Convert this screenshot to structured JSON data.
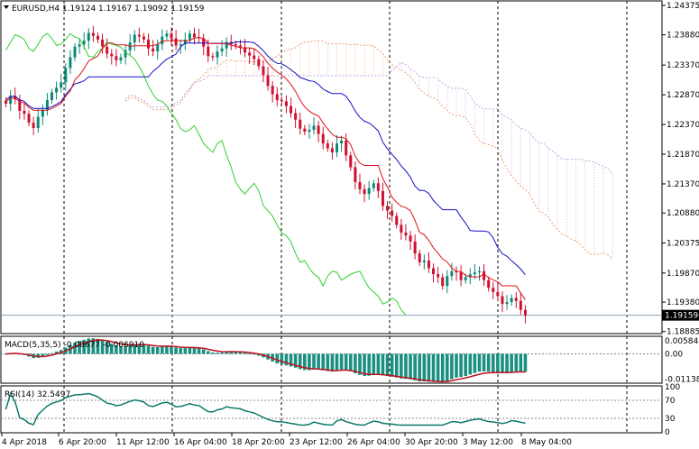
{
  "main": {
    "symbol_header": "EURUSD,H4  1.19124 1.19167 1.19092 1.19159",
    "last_price_label": "1.19159",
    "price_ticks": [
      "1.24375",
      "1.23880",
      "1.23370",
      "1.22870",
      "1.22370",
      "1.21870",
      "1.21370",
      "1.20880",
      "1.20375",
      "1.19870",
      "1.19380",
      "1.18885"
    ],
    "price_range": [
      1.1885,
      1.2445
    ],
    "last_price": 1.19159
  },
  "macd": {
    "label": "MACD(5,35,5) -0.00677 -0.006910",
    "ticks": [
      "0.005848",
      "0.00",
      "-0.011387"
    ],
    "range": [
      -0.0128,
      0.0075
    ],
    "zero": 0
  },
  "rsi": {
    "label": "RSI(14) 32.5497",
    "ticks": [
      "100",
      "70",
      "30",
      "0"
    ],
    "levels": [
      70,
      30
    ],
    "last": 32.5497
  },
  "time_axis": [
    "4 Apr 2018",
    "6 Apr 20:00",
    "11 Apr 12:00",
    "16 Apr 04:00",
    "18 Apr 20:00",
    "23 Apr 12:00",
    "26 Apr 04:00",
    "30 Apr 20:00",
    "3 May 12:00",
    "8 May 04:00"
  ],
  "colors": {
    "bull_candle": "#0c8a78",
    "bear_candle": "#d01030",
    "tenkan": "#e0101a",
    "kijun": "#1010c8",
    "chikou": "#30d030",
    "cloud_up": "#f0a070",
    "cloud_down": "#c8a0e0",
    "macd_hist": "#1a9080",
    "macd_signal": "#c01020",
    "rsi_line": "#0c7a6a"
  },
  "chart_data": {
    "type": "candlestick",
    "closes": [
      1.2272,
      1.2285,
      1.2279,
      1.226,
      1.2255,
      1.224,
      1.2231,
      1.225,
      1.2262,
      1.2278,
      1.2291,
      1.2299,
      1.2308,
      1.2332,
      1.235,
      1.2368,
      1.2372,
      1.2378,
      1.2391,
      1.2386,
      1.238,
      1.2368,
      1.2356,
      1.2352,
      1.2345,
      1.235,
      1.2362,
      1.2375,
      1.2388,
      1.2385,
      1.238,
      1.2365,
      1.236,
      1.2372,
      1.2385,
      1.239,
      1.2382,
      1.237,
      1.2372,
      1.238,
      1.239,
      1.2384,
      1.2382,
      1.2368,
      1.2352,
      1.235,
      1.236,
      1.2365,
      1.2376,
      1.2372,
      1.237,
      1.2367,
      1.2358,
      1.2353,
      1.2347,
      1.2335,
      1.232,
      1.2302,
      1.2288,
      1.2278,
      1.2276,
      1.2268,
      1.2256,
      1.2245,
      1.223,
      1.2225,
      1.2228,
      1.2235,
      1.2221,
      1.2205,
      1.2197,
      1.219,
      1.2205,
      1.221,
      1.2185,
      1.2165,
      1.214,
      1.2128,
      1.212,
      1.213,
      1.2138,
      1.2125,
      1.21,
      1.2092,
      1.2083,
      1.2068,
      1.2055,
      1.205,
      1.204,
      1.202,
      1.2005,
      1.2008,
      1.1995,
      1.1985,
      1.198,
      1.1965,
      1.1982,
      1.199,
      1.1988,
      1.1975,
      1.198,
      1.1985,
      1.1988,
      1.199,
      1.1975,
      1.1962,
      1.1955,
      1.1948,
      1.1935,
      1.1938,
      1.1945,
      1.194,
      1.1925,
      1.1916
    ]
  }
}
